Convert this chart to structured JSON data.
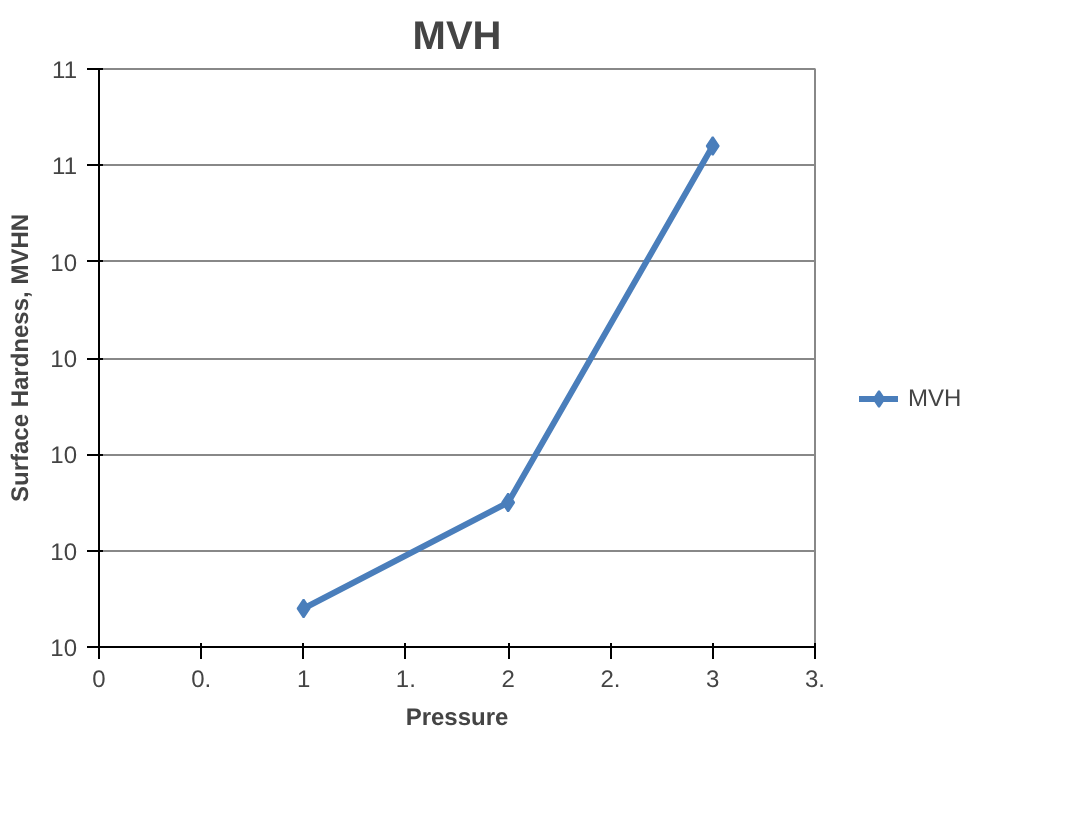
{
  "chart_data": {
    "type": "line",
    "title": "MVH",
    "xlabel": "Pressure",
    "ylabel": "Surface Hardness, MVHN",
    "x": [
      1,
      2,
      3
    ],
    "series": [
      {
        "name": "MVH",
        "color": "#4a7ebb",
        "values": [
          10.04,
          10.15,
          10.52
        ]
      }
    ],
    "xlim": [
      0,
      3.5
    ],
    "xticks": [
      0,
      {
        "value": 0.5,
        "label": "0."
      },
      1,
      {
        "value": 1.5,
        "label": "1."
      },
      2,
      {
        "value": 2.5,
        "label": "2."
      },
      3,
      {
        "value": 3.5,
        "label": "3."
      }
    ],
    "ylim": [
      10.0,
      10.6
    ],
    "yticks": [
      {
        "value": 10.0,
        "label": "10"
      },
      {
        "value": 10.1,
        "label": "10"
      },
      {
        "value": 10.2,
        "label": "10"
      },
      {
        "value": 10.3,
        "label": "10"
      },
      {
        "value": 10.4,
        "label": "10"
      },
      {
        "value": 10.5,
        "label": "11"
      },
      {
        "value": 10.6,
        "label": "11"
      }
    ],
    "grid": "y",
    "legend": "right",
    "marker": "diamond",
    "line_style": "solid"
  }
}
